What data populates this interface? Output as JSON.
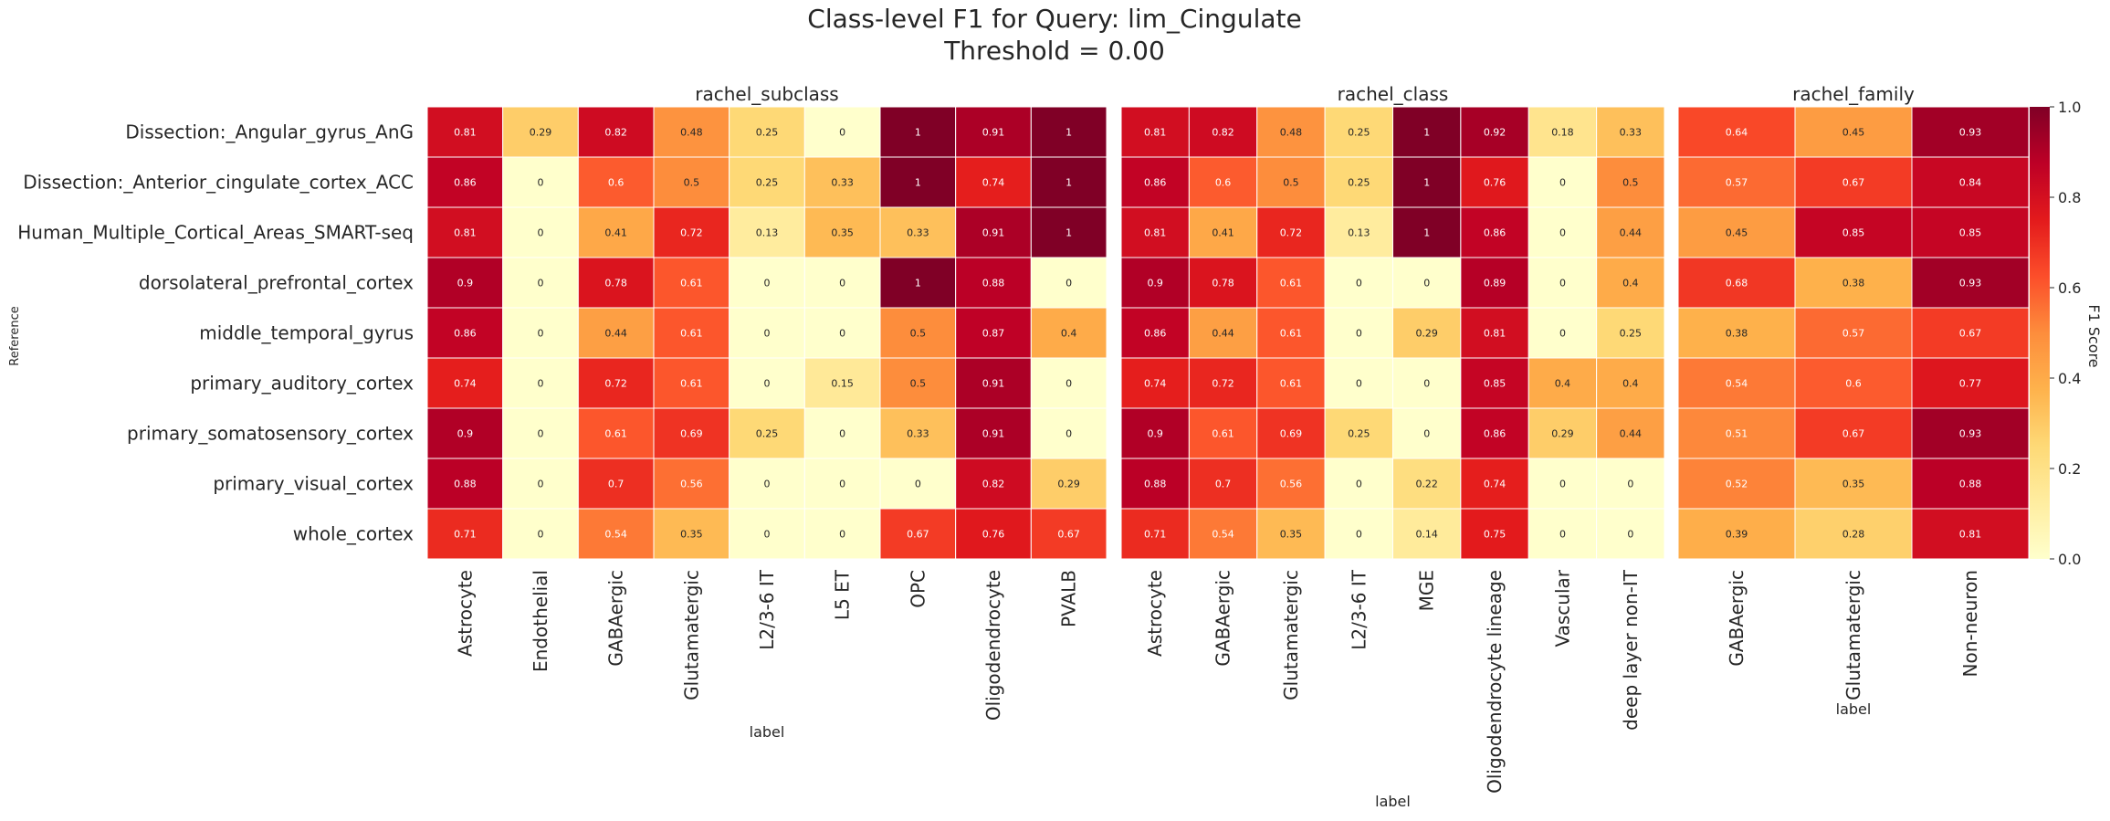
{
  "title_line1": "Class-level F1 for Query: lim_Cingulate",
  "title_line2": "Threshold = 0.00",
  "ylabel": "Reference",
  "colorbar": {
    "label": "F1 Score",
    "ticks": [
      "0.0",
      "0.2",
      "0.4",
      "0.6",
      "0.8",
      "1.0"
    ],
    "range": [
      0,
      1
    ],
    "colormap": "YlOrRd",
    "colors": [
      "#ffffcc",
      "#ffeda0",
      "#fed976",
      "#feb24c",
      "#fd8d3c",
      "#fc4e2a",
      "#e31a1c",
      "#bd0026",
      "#800026"
    ]
  },
  "chart_data": [
    {
      "type": "heatmap",
      "title": "rachel_subclass",
      "xlabel": "label",
      "ylabel": "Reference",
      "rows": [
        "Dissection:_Angular_gyrus_AnG",
        "Dissection:_Anterior_cingulate_cortex_ACC",
        "Human_Multiple_Cortical_Areas_SMART-seq",
        "dorsolateral_prefrontal_cortex",
        "middle_temporal_gyrus",
        "primary_auditory_cortex",
        "primary_somatosensory_cortex",
        "primary_visual_cortex",
        "whole_cortex"
      ],
      "columns": [
        "Astrocyte",
        "Endothelial",
        "GABAergic",
        "Glutamatergic",
        "L2/3-6 IT",
        "L5 ET",
        "OPC",
        "Oligodendrocyte",
        "PVALB"
      ],
      "values": [
        [
          0.81,
          0.29,
          0.82,
          0.48,
          0.25,
          0,
          1,
          0.91,
          1
        ],
        [
          0.86,
          0,
          0.6,
          0.5,
          0.25,
          0.33,
          1,
          0.74,
          1
        ],
        [
          0.81,
          0,
          0.41,
          0.72,
          0.13,
          0.35,
          0.33,
          0.91,
          1
        ],
        [
          0.9,
          0,
          0.78,
          0.61,
          0,
          0,
          1,
          0.88,
          0
        ],
        [
          0.86,
          0,
          0.44,
          0.61,
          0,
          0,
          0.5,
          0.87,
          0.4
        ],
        [
          0.74,
          0,
          0.72,
          0.61,
          0,
          0.15,
          0.5,
          0.91,
          0
        ],
        [
          0.9,
          0,
          0.61,
          0.69,
          0.25,
          0,
          0.33,
          0.91,
          0
        ],
        [
          0.88,
          0,
          0.7,
          0.56,
          0,
          0,
          0,
          0.82,
          0.29
        ],
        [
          0.71,
          0,
          0.54,
          0.35,
          0,
          0,
          0.67,
          0.76,
          0.67
        ]
      ]
    },
    {
      "type": "heatmap",
      "title": "rachel_class",
      "xlabel": "label",
      "columns": [
        "Astrocyte",
        "GABAergic",
        "Glutamatergic",
        "L2/3-6 IT",
        "MGE",
        "Oligodendrocyte lineage",
        "Vascular",
        "deep layer non-IT"
      ],
      "values": [
        [
          0.81,
          0.82,
          0.48,
          0.25,
          1,
          0.92,
          0.18,
          0.33
        ],
        [
          0.86,
          0.6,
          0.5,
          0.25,
          1,
          0.76,
          0,
          0.5
        ],
        [
          0.81,
          0.41,
          0.72,
          0.13,
          1,
          0.86,
          0,
          0.44
        ],
        [
          0.9,
          0.78,
          0.61,
          0,
          0,
          0.89,
          0,
          0.4
        ],
        [
          0.86,
          0.44,
          0.61,
          0,
          0.29,
          0.81,
          0,
          0.25
        ],
        [
          0.74,
          0.72,
          0.61,
          0,
          0,
          0.85,
          0.4,
          0.4
        ],
        [
          0.9,
          0.61,
          0.69,
          0.25,
          0,
          0.86,
          0.29,
          0.44
        ],
        [
          0.88,
          0.7,
          0.56,
          0,
          0.22,
          0.74,
          0,
          0
        ],
        [
          0.71,
          0.54,
          0.35,
          0,
          0.14,
          0.75,
          0,
          0
        ]
      ]
    },
    {
      "type": "heatmap",
      "title": "rachel_family",
      "xlabel": "label",
      "columns": [
        "GABAergic",
        "Glutamatergic",
        "Non-neuron"
      ],
      "values": [
        [
          0.64,
          0.45,
          0.93
        ],
        [
          0.57,
          0.67,
          0.84
        ],
        [
          0.45,
          0.85,
          0.85
        ],
        [
          0.68,
          0.38,
          0.93
        ],
        [
          0.38,
          0.57,
          0.67
        ],
        [
          0.54,
          0.6,
          0.77
        ],
        [
          0.51,
          0.67,
          0.93
        ],
        [
          0.52,
          0.35,
          0.88
        ],
        [
          0.39,
          0.28,
          0.81
        ]
      ]
    }
  ]
}
